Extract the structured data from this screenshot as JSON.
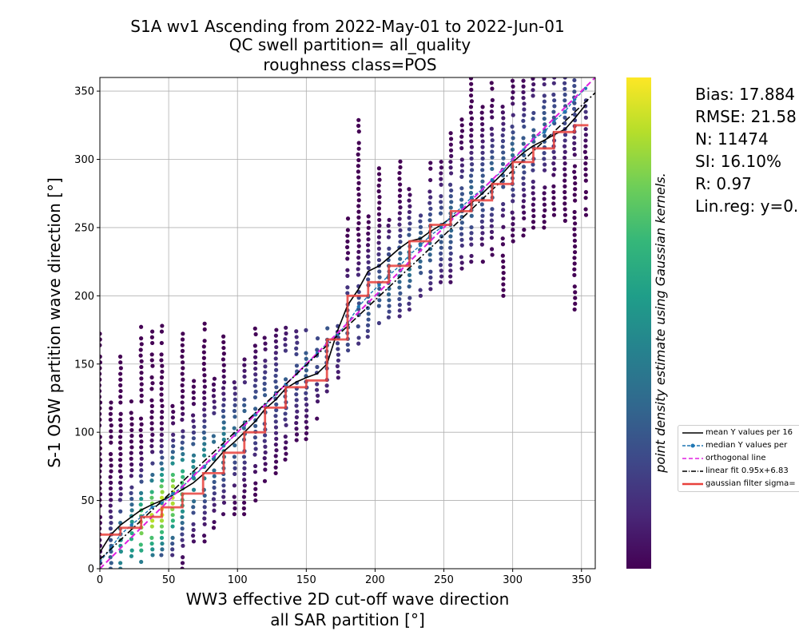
{
  "chart_data": {
    "type": "scatter",
    "title": [
      "S1A wv1 Ascending from 2022-May-01 to 2022-Jun-01",
      "QC swell partition= all_quality",
      "roughness class=POS"
    ],
    "xlabel": [
      "WW3 effective 2D cut-off wave direction",
      "all SAR partition [°]"
    ],
    "ylabel": "S-1 OSW partition wave direction [°]",
    "xlim": [
      0,
      360
    ],
    "ylim": [
      0,
      360
    ],
    "xticks": [
      0,
      50,
      100,
      150,
      200,
      250,
      300,
      350
    ],
    "yticks": [
      0,
      50,
      100,
      150,
      200,
      250,
      300,
      350
    ],
    "grid": true,
    "colorbar_label": "point density estimate using Gaussian kernels.",
    "colormap": [
      "#440154",
      "#482878",
      "#3e4989",
      "#31688e",
      "#26828e",
      "#1f9e89",
      "#35b779",
      "#6ece58",
      "#b5de2b",
      "#fde725"
    ],
    "columns": [
      {
        "x": 0,
        "ymin": 0,
        "ymax": 176,
        "density": 0.05
      },
      {
        "x": 8,
        "ymin": 0,
        "ymax": 125,
        "density": 0.3
      },
      {
        "x": 15,
        "ymin": 0,
        "ymax": 157,
        "density": 0.5
      },
      {
        "x": 23,
        "ymin": 5,
        "ymax": 123,
        "density": 0.6
      },
      {
        "x": 30,
        "ymin": 5,
        "ymax": 178,
        "density": 0.8
      },
      {
        "x": 38,
        "ymin": 10,
        "ymax": 176,
        "density": 0.9
      },
      {
        "x": 45,
        "ymin": 10,
        "ymax": 178,
        "density": 0.95
      },
      {
        "x": 53,
        "ymin": 10,
        "ymax": 120,
        "density": 0.9
      },
      {
        "x": 60,
        "ymin": 0,
        "ymax": 176,
        "density": 0.7
      },
      {
        "x": 68,
        "ymin": 20,
        "ymax": 140,
        "density": 0.5
      },
      {
        "x": 76,
        "ymin": 20,
        "ymax": 180,
        "density": 0.5
      },
      {
        "x": 83,
        "ymin": 30,
        "ymax": 140,
        "density": 0.4
      },
      {
        "x": 90,
        "ymin": 40,
        "ymax": 176,
        "density": 0.45
      },
      {
        "x": 98,
        "ymin": 40,
        "ymax": 140,
        "density": 0.35
      },
      {
        "x": 105,
        "ymin": 40,
        "ymax": 160,
        "density": 0.35
      },
      {
        "x": 113,
        "ymin": 50,
        "ymax": 176,
        "density": 0.3
      },
      {
        "x": 120,
        "ymin": 60,
        "ymax": 170,
        "density": 0.3
      },
      {
        "x": 128,
        "ymin": 70,
        "ymax": 176,
        "density": 0.25
      },
      {
        "x": 135,
        "ymin": 80,
        "ymax": 178,
        "density": 0.3
      },
      {
        "x": 143,
        "ymin": 90,
        "ymax": 178,
        "density": 0.25
      },
      {
        "x": 150,
        "ymin": 95,
        "ymax": 178,
        "density": 0.3
      },
      {
        "x": 158,
        "ymin": 110,
        "ymax": 170,
        "density": 0.25
      },
      {
        "x": 165,
        "ymin": 130,
        "ymax": 178,
        "density": 0.3
      },
      {
        "x": 173,
        "ymin": 140,
        "ymax": 178,
        "density": 0.2
      },
      {
        "x": 180,
        "ymin": 160,
        "ymax": 260,
        "density": 0.3
      },
      {
        "x": 188,
        "ymin": 165,
        "ymax": 330,
        "density": 0.25
      },
      {
        "x": 195,
        "ymin": 170,
        "ymax": 262,
        "density": 0.3
      },
      {
        "x": 203,
        "ymin": 180,
        "ymax": 300,
        "density": 0.3
      },
      {
        "x": 210,
        "ymin": 180,
        "ymax": 262,
        "density": 0.35
      },
      {
        "x": 218,
        "ymin": 185,
        "ymax": 300,
        "density": 0.35
      },
      {
        "x": 225,
        "ymin": 190,
        "ymax": 280,
        "density": 0.4
      },
      {
        "x": 233,
        "ymin": 200,
        "ymax": 262,
        "density": 0.35
      },
      {
        "x": 240,
        "ymin": 205,
        "ymax": 300,
        "density": 0.35
      },
      {
        "x": 248,
        "ymin": 210,
        "ymax": 300,
        "density": 0.3
      },
      {
        "x": 255,
        "ymin": 210,
        "ymax": 322,
        "density": 0.35
      },
      {
        "x": 263,
        "ymin": 220,
        "ymax": 340,
        "density": 0.3
      },
      {
        "x": 270,
        "ymin": 225,
        "ymax": 360,
        "density": 0.35
      },
      {
        "x": 278,
        "ymin": 225,
        "ymax": 340,
        "density": 0.3
      },
      {
        "x": 285,
        "ymin": 230,
        "ymax": 360,
        "density": 0.35
      },
      {
        "x": 293,
        "ymin": 200,
        "ymax": 340,
        "density": 0.3
      },
      {
        "x": 300,
        "ymin": 240,
        "ymax": 360,
        "density": 0.35
      },
      {
        "x": 308,
        "ymin": 240,
        "ymax": 360,
        "density": 0.3
      },
      {
        "x": 315,
        "ymin": 250,
        "ymax": 360,
        "density": 0.3
      },
      {
        "x": 323,
        "ymin": 250,
        "ymax": 360,
        "density": 0.3
      },
      {
        "x": 330,
        "ymin": 255,
        "ymax": 360,
        "density": 0.25
      },
      {
        "x": 338,
        "ymin": 255,
        "ymax": 360,
        "density": 0.25
      },
      {
        "x": 345,
        "ymin": 190,
        "ymax": 360,
        "density": 0.25
      },
      {
        "x": 353,
        "ymin": 255,
        "ymax": 345,
        "density": 0.2
      }
    ],
    "series": [
      {
        "name": "mean Y values per 16...",
        "style": "solid",
        "color": "#000000",
        "x": [
          0,
          8,
          15,
          23,
          30,
          38,
          45,
          53,
          60,
          68,
          76,
          83,
          90,
          98,
          105,
          113,
          120,
          128,
          135,
          143,
          150,
          158,
          165,
          173,
          180,
          188,
          195,
          203,
          210,
          218,
          225,
          233,
          240,
          248,
          255,
          263,
          270,
          278,
          285,
          293,
          300,
          308,
          315,
          323,
          330,
          338,
          345,
          353
        ],
        "y": [
          12,
          25,
          32,
          38,
          43,
          47,
          50,
          54,
          58,
          63,
          70,
          78,
          86,
          93,
          100,
          108,
          117,
          124,
          132,
          137,
          140,
          143,
          150,
          175,
          193,
          205,
          218,
          222,
          228,
          235,
          240,
          242,
          247,
          252,
          257,
          262,
          268,
          275,
          282,
          290,
          298,
          305,
          310,
          314,
          318,
          322,
          330,
          340
        ]
      },
      {
        "name": "median Y values per ...",
        "style": "dashed-markers",
        "color": "#1f77b4",
        "x": [
          0,
          8,
          15,
          23,
          30,
          38,
          45,
          53,
          60,
          68,
          76,
          83,
          90,
          98,
          105,
          113,
          120,
          128,
          135,
          143,
          150,
          158,
          165,
          173,
          180,
          188,
          195,
          203,
          210,
          218,
          225,
          233,
          240,
          248,
          255,
          263,
          270,
          278,
          285,
          293,
          300,
          308,
          315,
          323,
          330,
          338,
          345,
          353
        ],
        "y": [
          5,
          15,
          25,
          32,
          38,
          45,
          48,
          55,
          60,
          68,
          75,
          82,
          90,
          98,
          105,
          113,
          120,
          128,
          135,
          143,
          150,
          158,
          165,
          172,
          180,
          192,
          200,
          208,
          215,
          222,
          230,
          237,
          244,
          250,
          258,
          265,
          272,
          278,
          285,
          292,
          300,
          307,
          315,
          320,
          328,
          335,
          344,
          352
        ]
      },
      {
        "name": "orthogonal line",
        "style": "dashed",
        "color": "#e020e0",
        "x": [
          0,
          360
        ],
        "y": [
          0,
          360
        ]
      },
      {
        "name": "linear fit 0.95x+6.83",
        "style": "dashdot",
        "color": "#000000",
        "x": [
          0,
          360
        ],
        "y": [
          6.83,
          348.83
        ]
      },
      {
        "name": "gaussian filter sigma=...",
        "style": "step",
        "color": "#e8413c",
        "x": [
          0,
          15,
          30,
          45,
          60,
          75,
          90,
          105,
          120,
          135,
          150,
          165,
          180,
          195,
          210,
          225,
          240,
          255,
          270,
          285,
          300,
          315,
          330,
          345,
          355
        ],
        "y": [
          25,
          30,
          38,
          45,
          55,
          70,
          85,
          100,
          118,
          133,
          138,
          168,
          200,
          210,
          222,
          240,
          252,
          262,
          270,
          282,
          298,
          308,
          320,
          325,
          325
        ]
      }
    ]
  },
  "stats": {
    "bias": "Bias: 17.884",
    "rmse": "RMSE: 21.58",
    "n": "N: 11474",
    "si": "SI: 16.10%",
    "r": "R: 0.97",
    "linreg": "Lin.reg: y=0."
  },
  "legend": [
    {
      "label": "mean Y values per 16",
      "style": "solid",
      "color": "#000000"
    },
    {
      "label": "median Y values per",
      "style": "dashed-markers",
      "color": "#1f77b4"
    },
    {
      "label": "orthogonal line",
      "style": "dashed",
      "color": "#e020e0"
    },
    {
      "label": "linear fit 0.95x+6.83",
      "style": "dashdot",
      "color": "#000000"
    },
    {
      "label": "gaussian filter sigma=",
      "style": "solid-thick",
      "color": "#e8413c"
    }
  ]
}
